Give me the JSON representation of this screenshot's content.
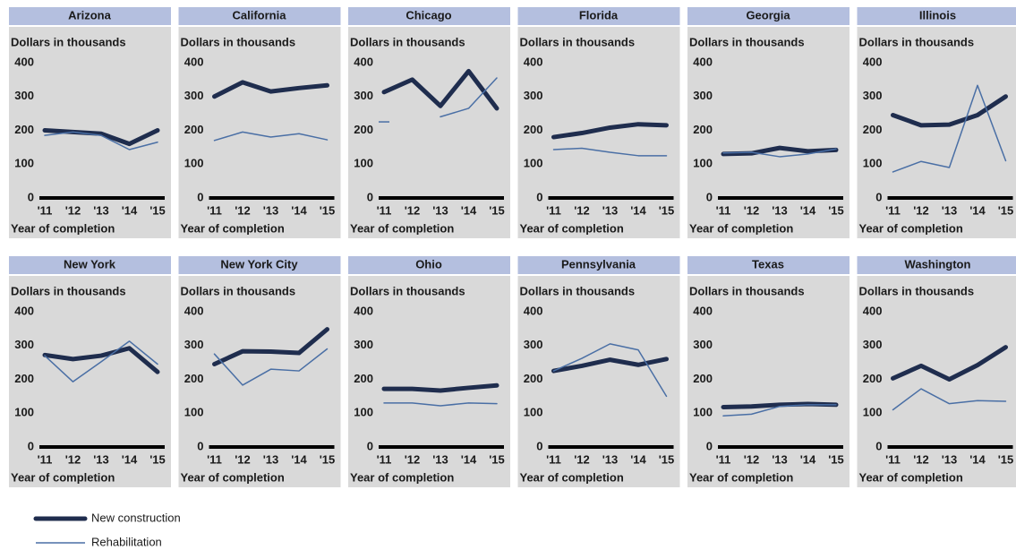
{
  "legend": {
    "series": [
      {
        "name": "New construction",
        "color": "#1f2d4e",
        "line_width": 5
      },
      {
        "name": "Rehabilitation",
        "color": "#4a6fa5",
        "line_width": 1.5
      }
    ]
  },
  "chart_data": [
    {
      "type": "line",
      "title": "Arizona",
      "ylabel": "Dollars in thousands",
      "xlabel": "Year of completion",
      "categories": [
        "'11",
        "'12",
        "'13",
        "'14",
        "'15"
      ],
      "ylim": [
        0,
        400
      ],
      "yticks": [
        0,
        100,
        200,
        300,
        400
      ],
      "series": [
        {
          "values": [
            200,
            195,
            190,
            160,
            200
          ]
        },
        {
          "values": [
            185,
            195,
            185,
            143,
            165
          ]
        }
      ]
    },
    {
      "type": "line",
      "title": "California",
      "ylabel": "Dollars in thousands",
      "xlabel": "Year of completion",
      "categories": [
        "'11",
        "'12",
        "'13",
        "'14",
        "'15"
      ],
      "ylim": [
        0,
        400
      ],
      "yticks": [
        0,
        100,
        200,
        300,
        400
      ],
      "series": [
        {
          "values": [
            300,
            342,
            315,
            325,
            333
          ]
        },
        {
          "values": [
            170,
            195,
            180,
            190,
            172
          ]
        }
      ]
    },
    {
      "type": "line",
      "title": "Chicago",
      "ylabel": "Dollars in thousands",
      "xlabel": "Year of completion",
      "categories": [
        "'11",
        "'12",
        "'13",
        "'14",
        "'15"
      ],
      "ylim": [
        0,
        400
      ],
      "yticks": [
        0,
        100,
        200,
        300,
        400
      ],
      "series": [
        {
          "values": [
            313,
            350,
            272,
            375,
            265
          ]
        },
        {
          "values": [
            225,
            null,
            240,
            265,
            355
          ]
        }
      ]
    },
    {
      "type": "line",
      "title": "Florida",
      "ylabel": "Dollars in thousands",
      "xlabel": "Year of completion",
      "categories": [
        "'11",
        "'12",
        "'13",
        "'14",
        "'15"
      ],
      "ylim": [
        0,
        400
      ],
      "yticks": [
        0,
        100,
        200,
        300,
        400
      ],
      "series": [
        {
          "values": [
            180,
            192,
            208,
            218,
            215
          ]
        },
        {
          "values": [
            143,
            147,
            135,
            125,
            125
          ]
        }
      ]
    },
    {
      "type": "line",
      "title": "Georgia",
      "ylabel": "Dollars in thousands",
      "xlabel": "Year of completion",
      "categories": [
        "'11",
        "'12",
        "'13",
        "'14",
        "'15"
      ],
      "ylim": [
        0,
        400
      ],
      "yticks": [
        0,
        100,
        200,
        300,
        400
      ],
      "series": [
        {
          "values": [
            130,
            132,
            148,
            138,
            142
          ]
        },
        {
          "values": [
            133,
            135,
            122,
            130,
            145
          ]
        }
      ]
    },
    {
      "type": "line",
      "title": "Illinois",
      "ylabel": "Dollars in thousands",
      "xlabel": "Year of completion",
      "categories": [
        "'11",
        "'12",
        "'13",
        "'14",
        "'15"
      ],
      "ylim": [
        0,
        400
      ],
      "yticks": [
        0,
        100,
        200,
        300,
        400
      ],
      "series": [
        {
          "values": [
            245,
            215,
            217,
            245,
            300
          ]
        },
        {
          "values": [
            77,
            108,
            90,
            333,
            110
          ]
        }
      ]
    },
    {
      "type": "line",
      "title": "New York",
      "ylabel": "Dollars in thousands",
      "xlabel": "Year of completion",
      "categories": [
        "'11",
        "'12",
        "'13",
        "'14",
        "'15"
      ],
      "ylim": [
        0,
        400
      ],
      "yticks": [
        0,
        100,
        200,
        300,
        400
      ],
      "series": [
        {
          "values": [
            272,
            260,
            270,
            292,
            222
          ]
        },
        {
          "values": [
            270,
            193,
            252,
            313,
            245
          ]
        }
      ]
    },
    {
      "type": "line",
      "title": "New York City",
      "ylabel": "Dollars in thousands",
      "xlabel": "Year of completion",
      "categories": [
        "'11",
        "'12",
        "'13",
        "'14",
        "'15"
      ],
      "ylim": [
        0,
        400
      ],
      "yticks": [
        0,
        100,
        200,
        300,
        400
      ],
      "series": [
        {
          "values": [
            245,
            283,
            282,
            278,
            348
          ]
        },
        {
          "values": [
            275,
            183,
            230,
            225,
            290
          ]
        }
      ]
    },
    {
      "type": "line",
      "title": "Ohio",
      "ylabel": "Dollars in thousands",
      "xlabel": "Year of completion",
      "categories": [
        "'11",
        "'12",
        "'13",
        "'14",
        "'15"
      ],
      "ylim": [
        0,
        400
      ],
      "yticks": [
        0,
        100,
        200,
        300,
        400
      ],
      "series": [
        {
          "values": [
            172,
            172,
            167,
            175,
            182
          ]
        },
        {
          "values": [
            130,
            130,
            122,
            130,
            128
          ]
        }
      ]
    },
    {
      "type": "line",
      "title": "Pennsylvania",
      "ylabel": "Dollars in thousands",
      "xlabel": "Year of completion",
      "categories": [
        "'11",
        "'12",
        "'13",
        "'14",
        "'15"
      ],
      "ylim": [
        0,
        400
      ],
      "yticks": [
        0,
        100,
        200,
        300,
        400
      ],
      "series": [
        {
          "values": [
            225,
            240,
            258,
            243,
            260
          ]
        },
        {
          "values": [
            225,
            262,
            305,
            287,
            150
          ]
        }
      ]
    },
    {
      "type": "line",
      "title": "Texas",
      "ylabel": "Dollars in thousands",
      "xlabel": "Year of completion",
      "categories": [
        "'11",
        "'12",
        "'13",
        "'14",
        "'15"
      ],
      "ylim": [
        0,
        400
      ],
      "yticks": [
        0,
        100,
        200,
        300,
        400
      ],
      "series": [
        {
          "values": [
            118,
            120,
            125,
            127,
            125
          ]
        },
        {
          "values": [
            92,
            97,
            120,
            125,
            125
          ]
        }
      ]
    },
    {
      "type": "line",
      "title": "Washington",
      "ylabel": "Dollars in thousands",
      "xlabel": "Year of completion",
      "categories": [
        "'11",
        "'12",
        "'13",
        "'14",
        "'15"
      ],
      "ylim": [
        0,
        400
      ],
      "yticks": [
        0,
        100,
        200,
        300,
        400
      ],
      "series": [
        {
          "values": [
            203,
            240,
            200,
            242,
            295
          ]
        },
        {
          "values": [
            110,
            172,
            128,
            137,
            135
          ]
        }
      ]
    }
  ]
}
